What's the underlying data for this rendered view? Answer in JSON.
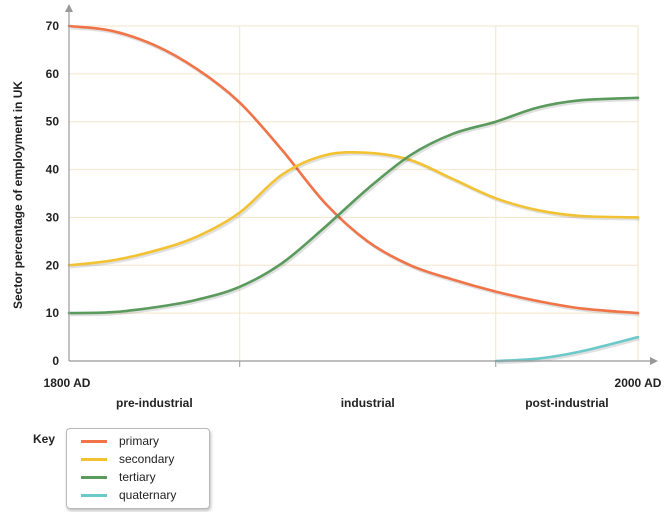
{
  "chart_data": {
    "type": "line",
    "title": "",
    "xlabel": "",
    "ylabel": "Sector percentage of employment in UK",
    "ylim": [
      0,
      70
    ],
    "yticks": [
      0,
      10,
      20,
      30,
      40,
      50,
      60,
      70
    ],
    "xlim": [
      1800,
      2000
    ],
    "xtick_labels": [
      "1800 AD",
      "2000 AD"
    ],
    "eras": [
      "pre-industrial",
      "industrial",
      "post-industrial"
    ],
    "era_boundaries": [
      1860,
      1950
    ],
    "grid": true,
    "legend_title": "Key",
    "legend_position": "bottom-left",
    "series": [
      {
        "name": "primary",
        "color": "#f07447",
        "x": [
          1800,
          1815,
          1830,
          1845,
          1860,
          1875,
          1890,
          1905,
          1920,
          1935,
          1950,
          1965,
          1980,
          2000
        ],
        "y": [
          70,
          69,
          66,
          61,
          54,
          44,
          33,
          25,
          20,
          17,
          14.5,
          12.5,
          11,
          10
        ]
      },
      {
        "name": "secondary",
        "color": "#f2c233",
        "x": [
          1800,
          1815,
          1830,
          1845,
          1860,
          1875,
          1890,
          1905,
          1920,
          1935,
          1950,
          1965,
          1980,
          2000
        ],
        "y": [
          20,
          21,
          23,
          26,
          31,
          39,
          43,
          43.5,
          42,
          38,
          34,
          31.5,
          30.3,
          30
        ]
      },
      {
        "name": "tertiary",
        "color": "#5a9a5c",
        "x": [
          1800,
          1815,
          1830,
          1845,
          1860,
          1875,
          1890,
          1905,
          1920,
          1935,
          1950,
          1965,
          1980,
          2000
        ],
        "y": [
          10,
          10.2,
          11.2,
          12.8,
          15.5,
          20.5,
          28,
          36,
          43,
          47.5,
          50,
          53,
          54.5,
          55
        ]
      },
      {
        "name": "quaternary",
        "color": "#6bc9c9",
        "x": [
          1950,
          1965,
          1980,
          2000
        ],
        "y": [
          0,
          0.5,
          2,
          5
        ]
      }
    ]
  }
}
